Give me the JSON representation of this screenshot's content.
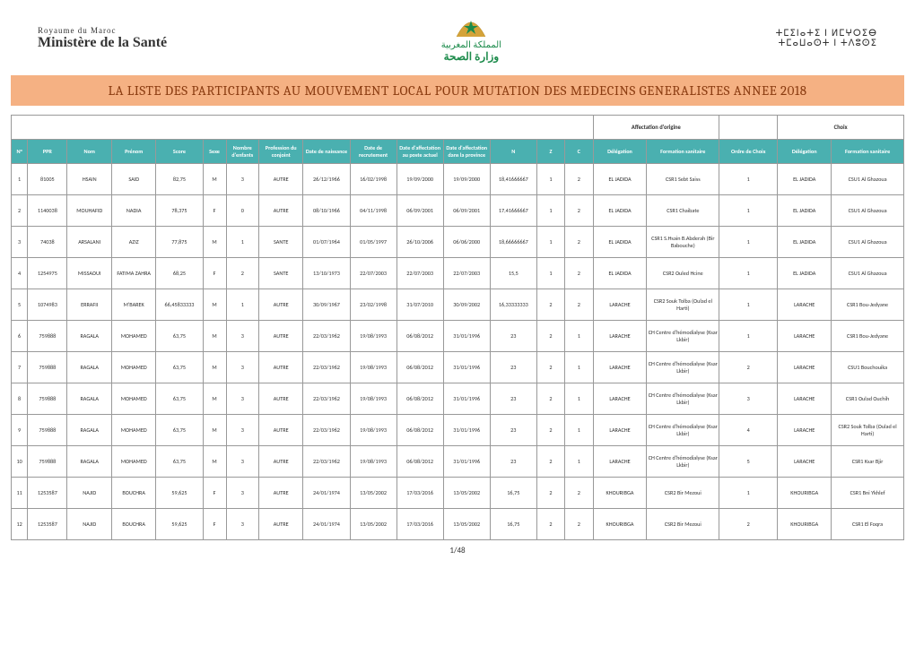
{
  "header": {
    "leftSmall": "Royaume du Maroc",
    "leftBig": "Ministère de la Santé",
    "arabicTop": "المملكة المغربية",
    "arabicBottom": "وزارة الصحة",
    "tifinagh1": "ⵜⵎⵉⵏⴰⵜⵉ ⵏ ⵍⵎⵖⵔⵉⴱ",
    "tifinagh2": "ⵜⵎⴰⵡⴰⵙⵜ ⵏ ⵜⴷⵓⵙⵉ"
  },
  "title": "LA LISTE DES PARTICIPANTS  AU MOUVEMENT LOCAL POUR MUTATION DES MEDECINS GENERALISTES ANNEE 2018",
  "colors": {
    "titleBg": "#f5b183",
    "titleText": "#8a3b10",
    "headerBg": "#4ab0b0",
    "emblemGreen": "#1c8b4b"
  },
  "groupHeaders": {
    "affOrig": "Affectation d'origine",
    "choix": "Choix"
  },
  "columns": [
    "N°",
    "PPR",
    "Nom",
    "Prénom",
    "Score",
    "Sexe",
    "Nombre d'enfants",
    "Profession du conjoint",
    "Date de naissance",
    "Date de recrutement",
    "Date d'affectation au poste actuel",
    "Date d'affectation dans la province",
    "N",
    "Z",
    "C",
    "Délégation",
    "Formation sanitaire",
    "Ordre de Choix",
    "Délégation",
    "Formation sanitaire"
  ],
  "rows": [
    [
      "1",
      "81005",
      "HSAIN",
      "SAID",
      "82,75",
      "M",
      "3",
      "AUTRE",
      "26/12/1966",
      "16/02/1998",
      "19/09/2000",
      "19/09/2000",
      "18,41666667",
      "1",
      "2",
      "EL JADIDA",
      "CSR1 Sebt Saiss",
      "1",
      "EL JADIDA",
      "CSU1 Al Ghazoua"
    ],
    [
      "2",
      "1140038",
      "MOUHAFID",
      "NADIA",
      "78,375",
      "F",
      "0",
      "AUTRE",
      "08/10/1966",
      "04/11/1998",
      "06/09/2001",
      "06/09/2001",
      "17,41666667",
      "1",
      "2",
      "EL JADIDA",
      "CSR1 Chaibate",
      "1",
      "EL JADIDA",
      "CSU1 Al Ghazoua"
    ],
    [
      "3",
      "74038",
      "ARSALANI",
      "AZIZ",
      "77,875",
      "M",
      "1",
      "SANTE",
      "01/07/1964",
      "01/05/1997",
      "26/10/2006",
      "06/06/2000",
      "18,66666667",
      "1",
      "2",
      "EL JADIDA",
      "CSR1 S.Hsain B.Abderah (Bir Babouche)",
      "1",
      "EL JADIDA",
      "CSU1 Al Ghazoua"
    ],
    [
      "4",
      "1254975",
      "MISSAOUI",
      "FATIMA ZAHRA",
      "68,25",
      "F",
      "2",
      "SANTE",
      "13/10/1973",
      "22/07/2003",
      "22/07/2003",
      "22/07/2003",
      "15,5",
      "1",
      "2",
      "EL JADIDA",
      "CSR2 Ouled Hcine",
      "1",
      "EL JADIDA",
      "CSU1 Al Ghazoua"
    ],
    [
      "5",
      "1074983",
      "ERRAFII",
      "M'BAREK",
      "66,45833333",
      "M",
      "1",
      "AUTRE",
      "30/09/1967",
      "23/02/1998",
      "31/07/2010",
      "30/09/2002",
      "16,33333333",
      "2",
      "2",
      "LARACHE",
      "CSR2 Souk Tolba (Oulad el Harti)",
      "1",
      "LARACHE",
      "CSR1 Bou-Jedyane"
    ],
    [
      "6",
      "759888",
      "RAGALA",
      "MOHAMED",
      "63,75",
      "M",
      "3",
      "AUTRE",
      "22/03/1962",
      "19/08/1993",
      "06/08/2012",
      "31/01/1996",
      "23",
      "2",
      "1",
      "LARACHE",
      "CH Centre d'hémodialyse (Ksar Lkbir)",
      "1",
      "LARACHE",
      "CSR1 Bou-Jedyane"
    ],
    [
      "7",
      "759888",
      "RAGALA",
      "MOHAMED",
      "63,75",
      "M",
      "3",
      "AUTRE",
      "22/03/1962",
      "19/08/1993",
      "06/08/2012",
      "31/01/1996",
      "23",
      "2",
      "1",
      "LARACHE",
      "CH Centre d'hémodialyse (Ksar Lkbir)",
      "2",
      "LARACHE",
      "CSU1 Bouchouika"
    ],
    [
      "8",
      "759888",
      "RAGALA",
      "MOHAMED",
      "63,75",
      "M",
      "3",
      "AUTRE",
      "22/03/1962",
      "19/08/1993",
      "06/08/2012",
      "31/01/1996",
      "23",
      "2",
      "1",
      "LARACHE",
      "CH Centre d'hémodialyse (Ksar Lkbir)",
      "3",
      "LARACHE",
      "CSR1 Oulad Ouchih"
    ],
    [
      "9",
      "759888",
      "RAGALA",
      "MOHAMED",
      "63,75",
      "M",
      "3",
      "AUTRE",
      "22/03/1962",
      "19/08/1993",
      "06/08/2012",
      "31/01/1996",
      "23",
      "2",
      "1",
      "LARACHE",
      "CH Centre d'hémodialyse (Ksar Lkbir)",
      "4",
      "LARACHE",
      "CSR2 Souk Tolba (Oulad el Harti)"
    ],
    [
      "10",
      "759888",
      "RAGALA",
      "MOHAMED",
      "63,75",
      "M",
      "3",
      "AUTRE",
      "22/03/1962",
      "19/08/1993",
      "06/08/2012",
      "31/01/1996",
      "23",
      "2",
      "1",
      "LARACHE",
      "CH Centre d'hémodialyse (Ksar Lkbir)",
      "5",
      "LARACHE",
      "CSR1 Ksar Bjir"
    ],
    [
      "11",
      "1253587",
      "NAJID",
      "BOUCHRA",
      "59,625",
      "F",
      "3",
      "AUTRE",
      "24/01/1974",
      "13/05/2002",
      "17/03/2016",
      "13/05/2002",
      "16,75",
      "2",
      "2",
      "KHOURIBGA",
      "CSR2 Bir Mezoui",
      "1",
      "KHOURIBGA",
      "CSR1 Bni Ykhlef"
    ],
    [
      "12",
      "1253587",
      "NAJID",
      "BOUCHRA",
      "59,625",
      "F",
      "3",
      "AUTRE",
      "24/01/1974",
      "13/05/2002",
      "17/03/2016",
      "13/05/2002",
      "16,75",
      "2",
      "2",
      "KHOURIBGA",
      "CSR2 Bir Mezoui",
      "2",
      "KHOURIBGA",
      "CSR1 El Foqra"
    ]
  ],
  "pageNumber": "1/48"
}
